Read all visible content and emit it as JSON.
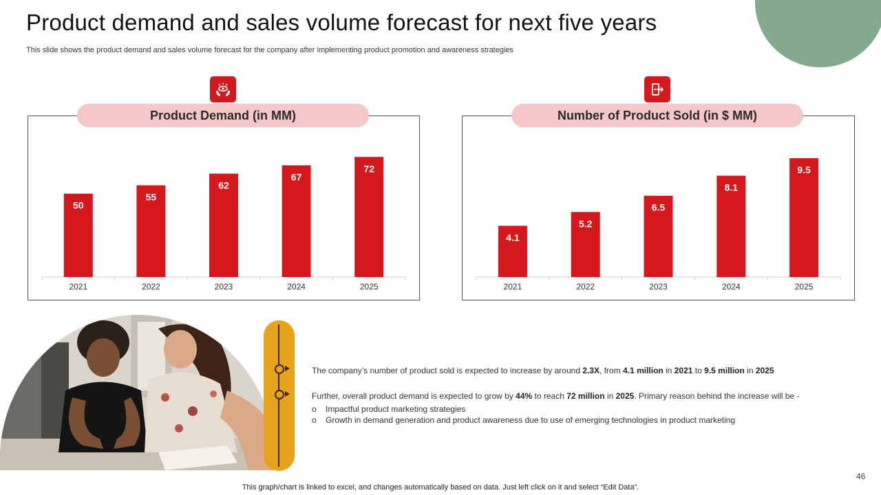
{
  "slide": {
    "title": "Product demand and sales volume forecast for next five years",
    "subtitle": "This slide shows the product demand and sales volume forecast for the company after implementing product promotion and awareness strategies",
    "page_number": "46",
    "footnote": "This graph/chart is linked to excel,  and changes automatically based on data. Just left click on it and select “Edit Data”.",
    "accent_color": "#d4181d",
    "corner_color": "#84a98c",
    "pill_color": "#f6c7c8",
    "timeline_color": "#e8a31c"
  },
  "icons": {
    "left": "hands-eye-icon",
    "right": "product-exit-icon"
  },
  "photo": {
    "name": "students-studying-photo"
  },
  "chart_data": [
    {
      "type": "bar",
      "title": "Product Demand (in MM)",
      "categories": [
        "2021",
        "2022",
        "2023",
        "2024",
        "2025"
      ],
      "values": [
        50,
        55,
        62,
        67,
        72
      ],
      "value_labels": [
        "50",
        "55",
        "62",
        "67",
        "72"
      ],
      "ylim": [
        0,
        75
      ],
      "bar_color": "#d4181d",
      "grid": false,
      "legend": "none"
    },
    {
      "type": "bar",
      "title": "Number of Product Sold (in $ MM)",
      "categories": [
        "2021",
        "2022",
        "2023",
        "2024",
        "2025"
      ],
      "values": [
        4.1,
        5.2,
        6.5,
        8.1,
        9.5
      ],
      "value_labels": [
        "4.1",
        "5.2",
        "6.5",
        "8.1",
        "9.5"
      ],
      "ylim": [
        0,
        10
      ],
      "bar_color": "#d4181d",
      "grid": false,
      "legend": "none"
    }
  ],
  "notes": {
    "p1": {
      "t1": "The company’s number of product sold is expected to increase by around ",
      "b1": "2.3X",
      "t2": ", from ",
      "b2": "4.1 million",
      "t3": " in ",
      "b3": "2021",
      "t4": " to ",
      "b4": "9.5 million",
      "t5": " in ",
      "b5": "2025"
    },
    "p2": {
      "t1": "Further, overall product demand is expected to grow by ",
      "b1": "44%",
      "t2": " to reach ",
      "b2": "72 million",
      "t3": " in ",
      "b3": "2025",
      "t4": ". Primary reason behind the increase will be -"
    },
    "bullet_marker": "o",
    "bullets": [
      "Impactful product marketing strategies",
      "Growth in demand generation and product awareness due to use of emerging technologies in product marketing"
    ]
  }
}
